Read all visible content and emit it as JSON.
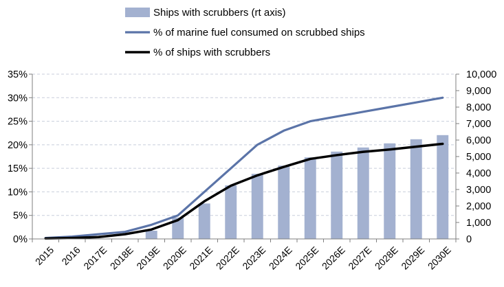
{
  "chart_data": {
    "type": "bar+line",
    "categories": [
      "2015",
      "2016",
      "2017E",
      "2018E",
      "2019E",
      "2020E",
      "2021E",
      "2022E",
      "2023E",
      "2024E",
      "2025E",
      "2026E",
      "2027E",
      "2028E",
      "2029E",
      "2030E"
    ],
    "series": [
      {
        "name": "Ships with scrubbers (rt axis)",
        "kind": "bar",
        "axis": "right",
        "color": "#a3b1d0",
        "values": [
          0,
          0,
          0,
          0,
          500,
          1300,
          2150,
          3250,
          3950,
          4450,
          4950,
          5300,
          5550,
          5800,
          6050,
          6300
        ]
      },
      {
        "name": "% of marine fuel consumed on scrubbed ships",
        "kind": "line",
        "axis": "left",
        "color": "#5b74a8",
        "values": [
          0.2,
          0.5,
          1.0,
          1.5,
          3.0,
          5.0,
          10.0,
          15.0,
          20.0,
          23.0,
          25.0,
          26.0,
          27.0,
          28.0,
          29.0,
          30.0
        ]
      },
      {
        "name": "% of ships with scrubbers",
        "kind": "line",
        "axis": "left",
        "color": "#000000",
        "values": [
          0.1,
          0.2,
          0.4,
          1.0,
          2.0,
          4.0,
          8.0,
          11.3,
          13.5,
          15.3,
          17.0,
          17.8,
          18.5,
          19.0,
          19.6,
          20.2
        ]
      }
    ],
    "y_left": {
      "min": 0,
      "max": 35,
      "step": 5,
      "ticks": [
        "0%",
        "5%",
        "10%",
        "15%",
        "20%",
        "25%",
        "30%",
        "35%"
      ]
    },
    "y_right": {
      "min": 0,
      "max": 10000,
      "step": 1000,
      "ticks": [
        "0",
        "1,000",
        "2,000",
        "3,000",
        "4,000",
        "5,000",
        "6,000",
        "7,000",
        "8,000",
        "9,000",
        "10,000"
      ]
    },
    "grid": true,
    "grid_color": "#c8cedb",
    "legend_position": "top"
  }
}
